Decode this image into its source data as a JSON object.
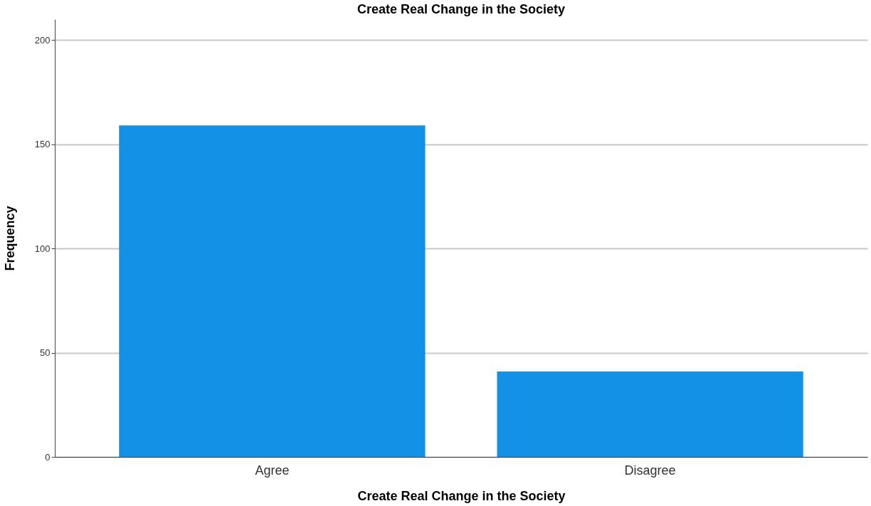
{
  "chart_data": {
    "type": "bar",
    "title": "Create Real Change in the Society",
    "xlabel": "Create Real Change in the Society",
    "ylabel": "Frequency",
    "categories": [
      "Agree",
      "Disagree"
    ],
    "values": [
      159,
      41
    ],
    "color": "#1391e6",
    "ylim": [
      0,
      210
    ],
    "yticks": [
      0,
      50,
      100,
      150,
      200
    ],
    "grid": "y"
  }
}
